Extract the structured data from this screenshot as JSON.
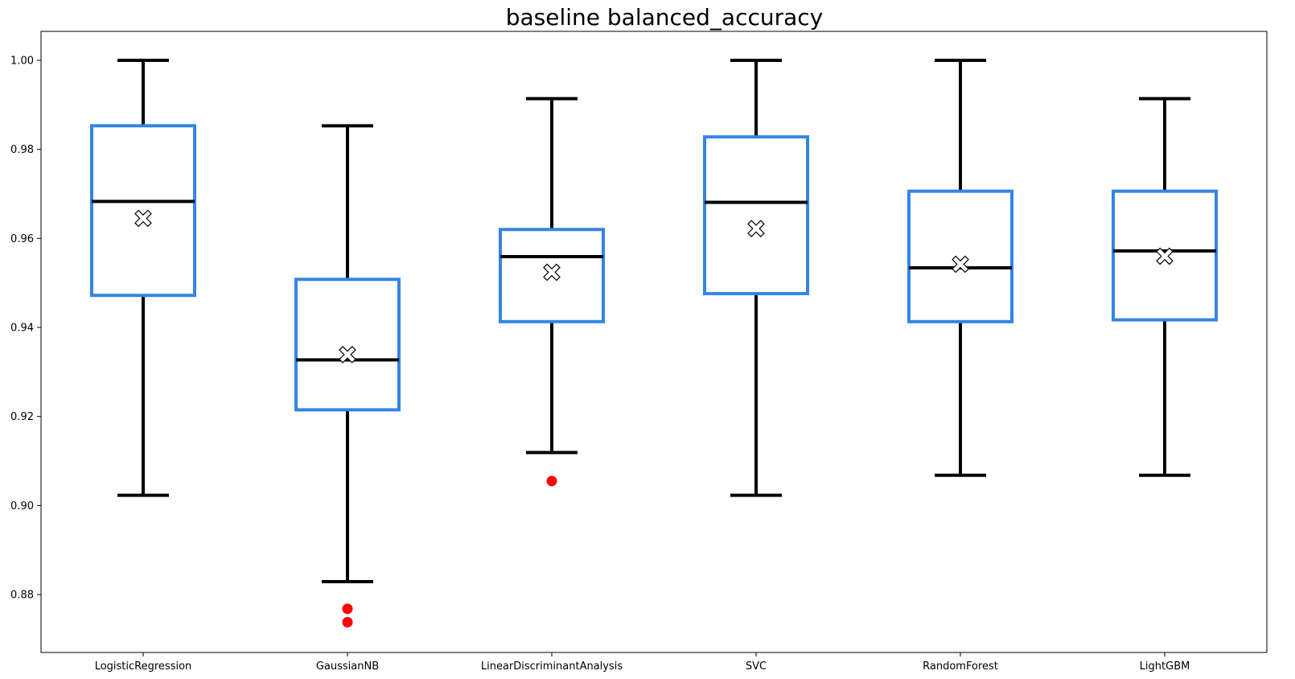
{
  "chart_data": {
    "type": "box",
    "title": "baseline balanced_accuracy",
    "xlabel": "",
    "ylabel": "",
    "ylim": [
      0.867,
      1.0065
    ],
    "yticks": [
      0.88,
      0.9,
      0.92,
      0.94,
      0.96,
      0.98,
      1.0
    ],
    "ytick_labels": [
      "0.88",
      "0.90",
      "0.92",
      "0.94",
      "0.96",
      "0.98",
      "1.00"
    ],
    "categories": [
      "LogisticRegression",
      "GaussianNB",
      "LinearDiscriminantAnalysis",
      "SVC",
      "RandomForest",
      "LightGBM"
    ],
    "boxes": [
      {
        "name": "LogisticRegression",
        "whisker_low": 0.9023,
        "q1": 0.9472,
        "median": 0.9683,
        "q3": 0.9853,
        "whisker_high": 1.0,
        "mean": 0.9645,
        "outliers": []
      },
      {
        "name": "GaussianNB",
        "whisker_low": 0.8829,
        "q1": 0.9215,
        "median": 0.9327,
        "q3": 0.9508,
        "whisker_high": 0.9853,
        "mean": 0.9339,
        "outliers": [
          0.8768,
          0.8738
        ]
      },
      {
        "name": "LinearDiscriminantAnalysis",
        "whisker_low": 0.9119,
        "q1": 0.9413,
        "median": 0.9559,
        "q3": 0.962,
        "whisker_high": 0.9914,
        "mean": 0.9524,
        "outliers": [
          0.9055
        ]
      },
      {
        "name": "SVC",
        "whisker_low": 0.9023,
        "q1": 0.9476,
        "median": 0.9681,
        "q3": 0.9828,
        "whisker_high": 1.0,
        "mean": 0.9622,
        "outliers": []
      },
      {
        "name": "RandomForest",
        "whisker_low": 0.9068,
        "q1": 0.9413,
        "median": 0.9534,
        "q3": 0.9706,
        "whisker_high": 1.0,
        "mean": 0.9542,
        "outliers": []
      },
      {
        "name": "LightGBM",
        "whisker_low": 0.9068,
        "q1": 0.9417,
        "median": 0.9572,
        "q3": 0.9706,
        "whisker_high": 0.9914,
        "mean": 0.956,
        "outliers": []
      }
    ],
    "grid": false,
    "colors": {
      "box": "#3385e5",
      "median": "#000000",
      "whisker": "#000000",
      "outlier": "#ff0000",
      "mean_marker_fill": "#ffffff",
      "mean_marker_edge": "#000000"
    }
  }
}
